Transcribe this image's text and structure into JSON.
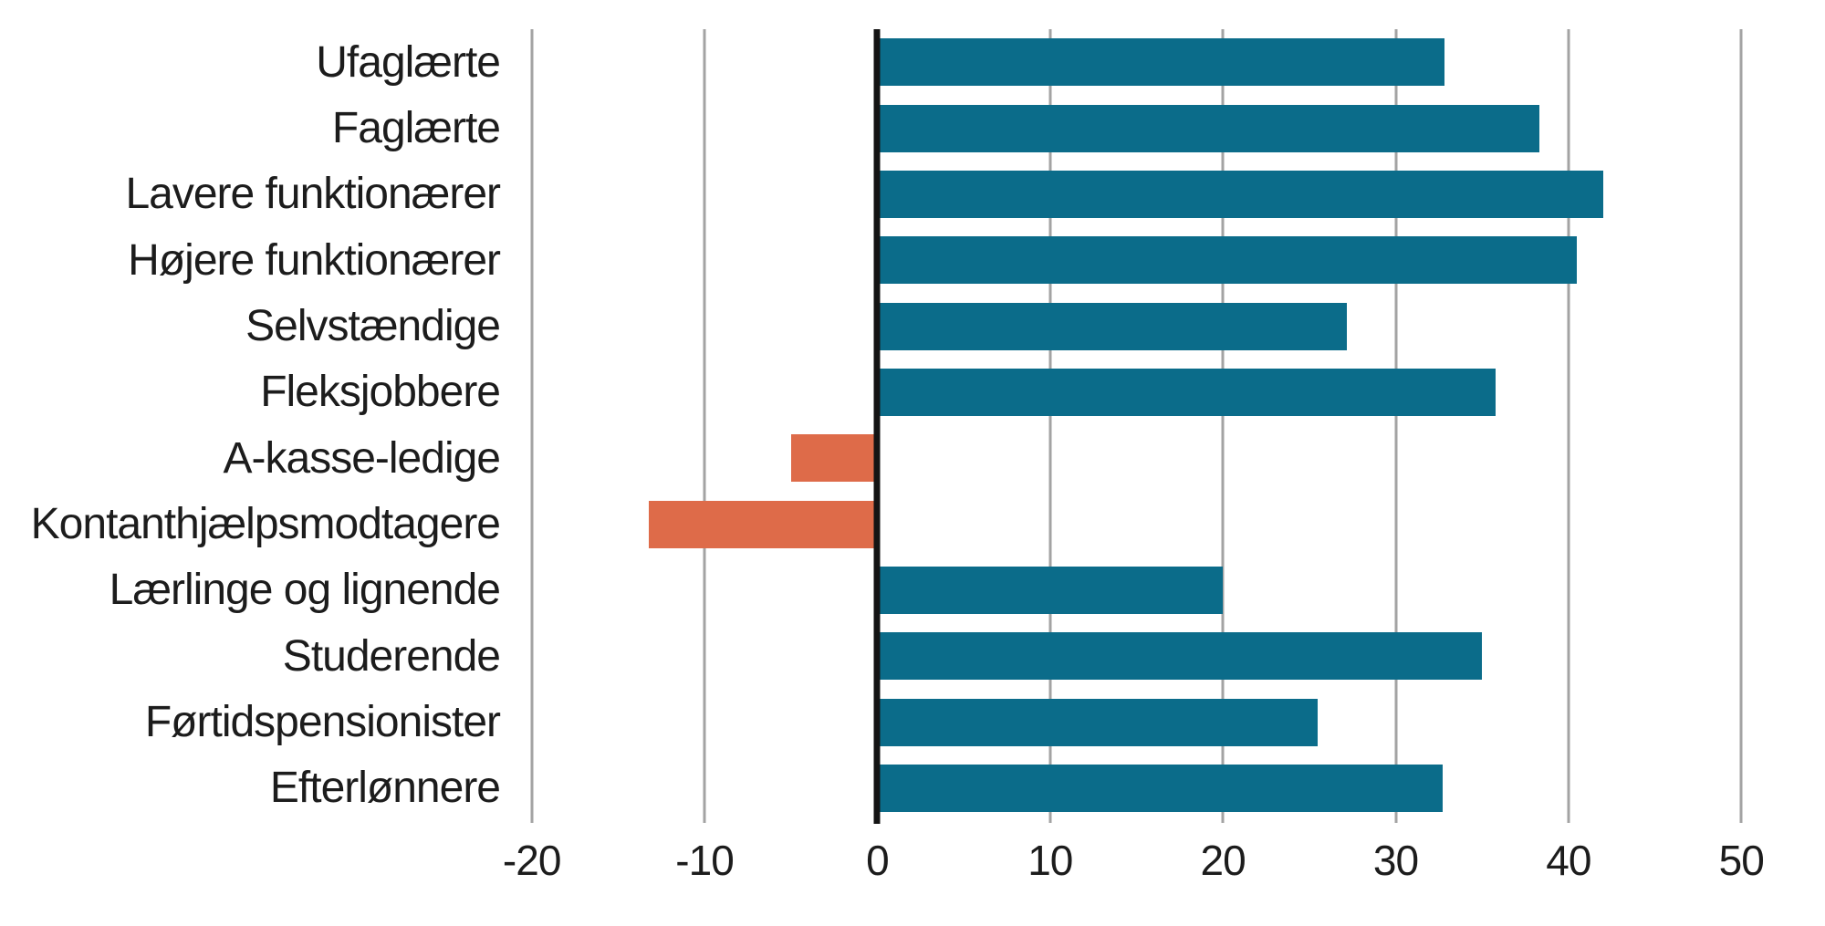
{
  "chart_data": {
    "type": "bar",
    "orientation": "horizontal",
    "title": "",
    "xlabel": "",
    "ylabel": "",
    "categories": [
      "Ufaglærte",
      "Faglærte",
      "Lavere funktionærer",
      "Højere funktionærer",
      "Selvstændige",
      "Fleksjobbere",
      "A-kasse-ledige",
      "Kontanthjælpsmodtagere",
      "Lærlinge og lignende",
      "Studerende",
      "Førtidspensionister",
      "Efterlønnere"
    ],
    "values": [
      32.8,
      38.3,
      42,
      40.5,
      27.2,
      35.8,
      -5,
      -13.2,
      20,
      35,
      25.5,
      32.7
    ],
    "xlim": [
      -25,
      54
    ],
    "xticks": [
      -20,
      -10,
      0,
      10,
      20,
      30,
      40,
      50
    ],
    "x_tick_labels": [
      "-20",
      "-10",
      "0",
      "10",
      "20",
      "30",
      "40",
      "50"
    ],
    "grid": "vertical-gridlines-only",
    "legend": "none",
    "positive_color": "#0b6c8a",
    "negative_color": "#de6b49",
    "gridline_color": "#a3a3a3",
    "zero_line_color": "#141414",
    "text_color": "#1c1c1c",
    "background_color": "#ffffff"
  }
}
